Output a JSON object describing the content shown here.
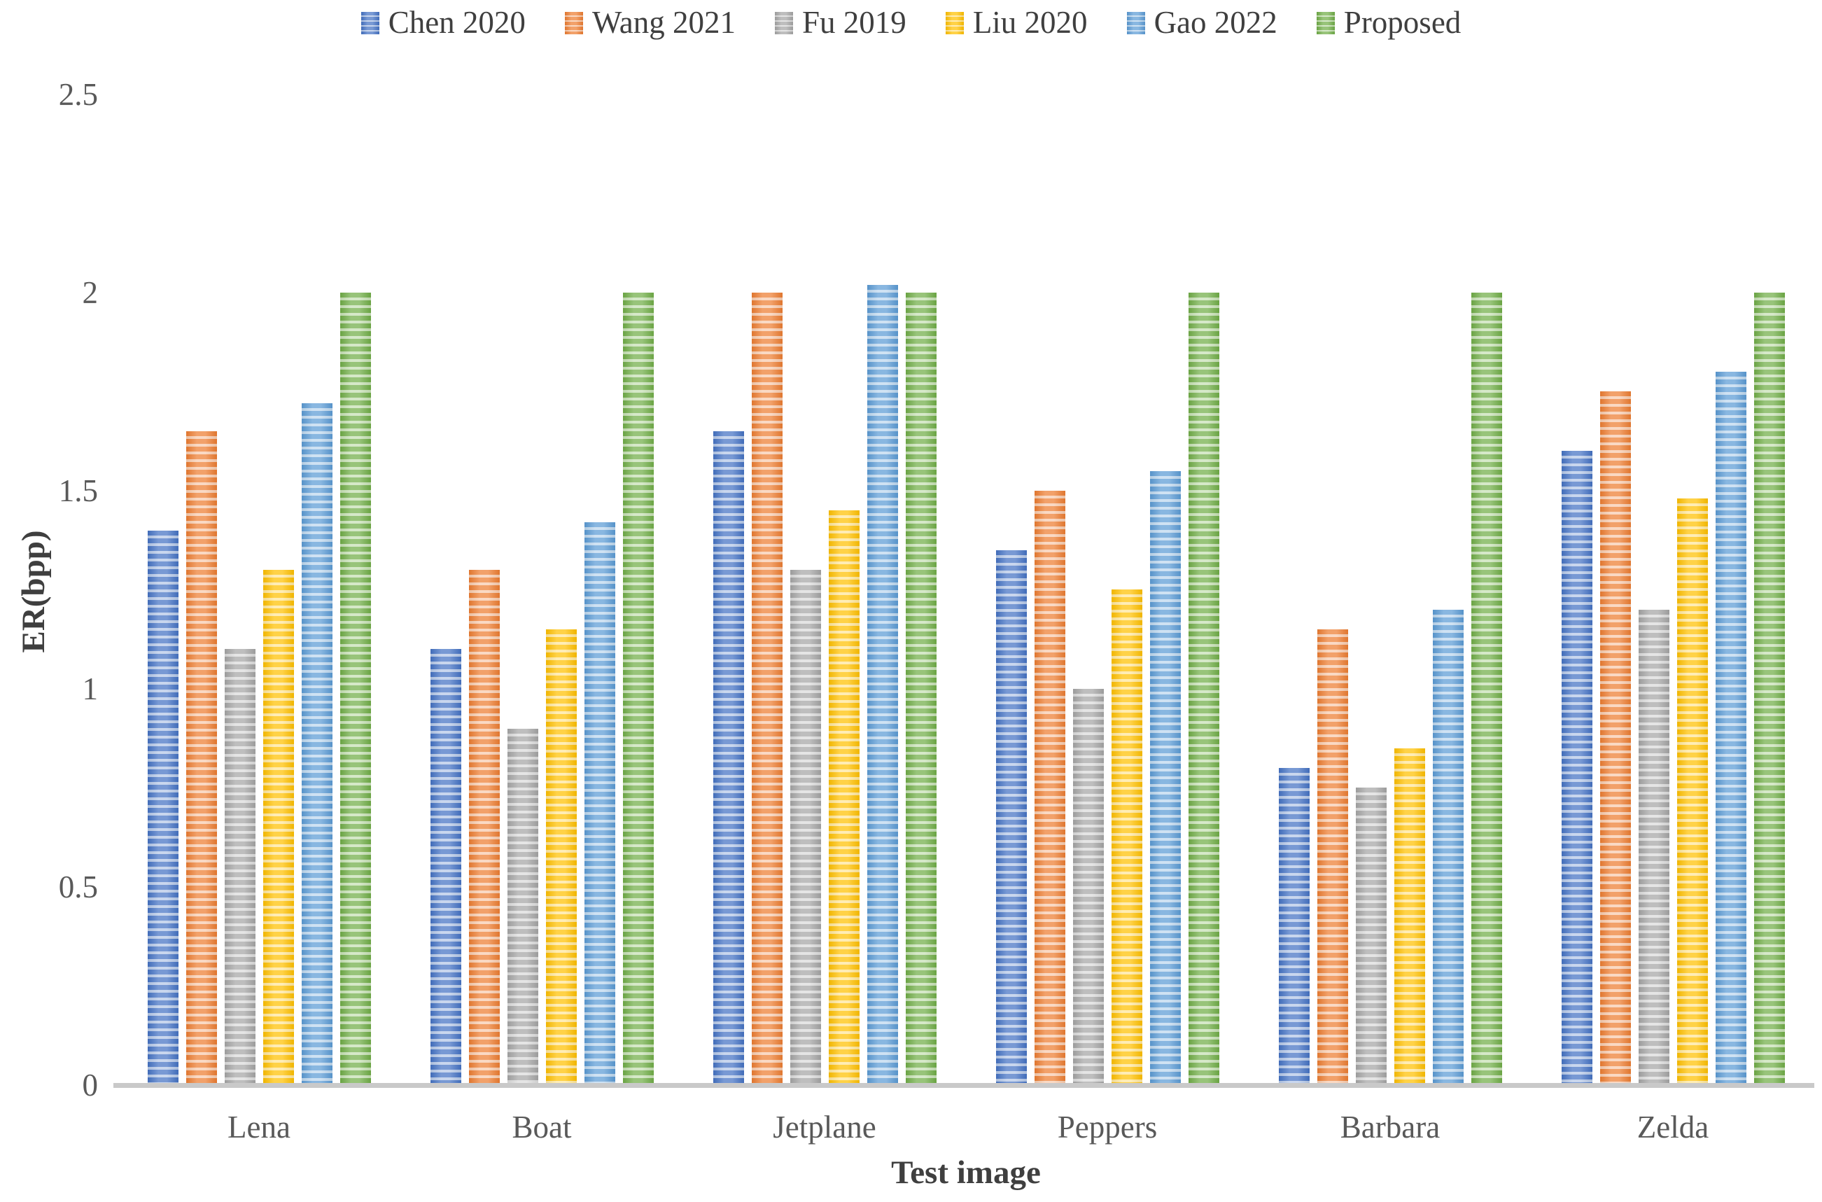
{
  "chart_data": {
    "type": "bar",
    "title": "",
    "xlabel": "Test image",
    "ylabel": "ER(bpp)",
    "categories": [
      "Lena",
      "Boat",
      "Jetplane",
      "Peppers",
      "Barbara",
      "Zelda"
    ],
    "series": [
      {
        "name": "Chen 2020",
        "color": "#4472C4",
        "light": "#B4C7E7",
        "values": [
          1.4,
          1.1,
          1.65,
          1.35,
          0.8,
          1.6
        ]
      },
      {
        "name": "Wang 2021",
        "color": "#ED7D31",
        "light": "#F8CBAD",
        "values": [
          1.65,
          1.3,
          2.0,
          1.5,
          1.15,
          1.75
        ]
      },
      {
        "name": "Fu 2019",
        "color": "#A5A5A5",
        "light": "#DBDBDB",
        "values": [
          1.1,
          0.9,
          1.3,
          1.0,
          0.75,
          1.2
        ]
      },
      {
        "name": "Liu 2020",
        "color": "#FFC000",
        "light": "#FFE699",
        "values": [
          1.3,
          1.15,
          1.45,
          1.25,
          0.85,
          1.48
        ]
      },
      {
        "name": "Gao 2022",
        "color": "#5B9BD5",
        "light": "#BDD7EE",
        "values": [
          1.72,
          1.42,
          2.02,
          1.55,
          1.2,
          1.8
        ]
      },
      {
        "name": "Proposed",
        "color": "#70AD47",
        "light": "#C6E0B4",
        "values": [
          2.0,
          2.0,
          2.0,
          2.0,
          2.0,
          2.0
        ]
      }
    ],
    "ylim": [
      0,
      2.5
    ],
    "ytick_values": [
      0,
      0.5,
      1,
      1.5,
      2,
      2.5
    ],
    "ytick_labels": [
      "0",
      "0.5",
      "1",
      "1.5",
      "2",
      "2.5"
    ],
    "grid": false,
    "legend_position": "top",
    "bar_pattern": "horizontal-stripes"
  },
  "axis_style": {
    "line_color": "#c9c9c9",
    "tick_text_color": "#595959",
    "title_text_color": "#3f3f3f"
  }
}
